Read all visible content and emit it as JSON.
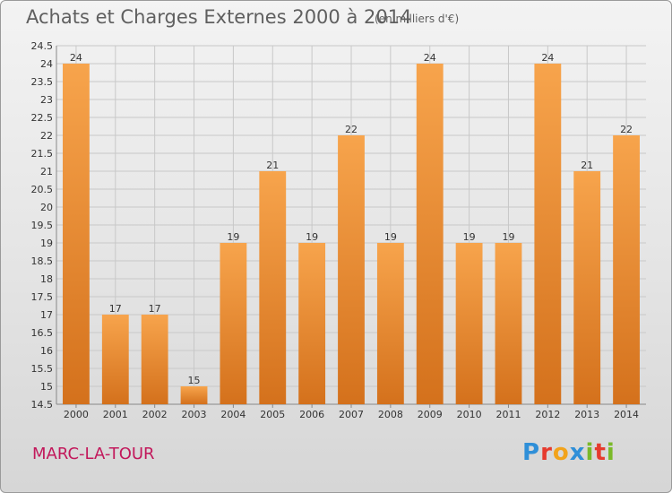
{
  "header": {
    "title": "Achats et Charges Externes 2000 à 2014",
    "subtitle": "(en milliers d'€)"
  },
  "footer": {
    "city": "MARC-LA-TOUR",
    "logo_text": "Proxiti"
  },
  "colors": {
    "bar_light": "#f7a44c",
    "bar_dark": "#d4711c",
    "grid": "#c8c8c8",
    "city_text": "#c2185b"
  },
  "chart_data": {
    "type": "bar",
    "title": "Achats et Charges Externes 2000 à 2014",
    "subtitle": "(en milliers d'€)",
    "categories": [
      "2000",
      "2001",
      "2002",
      "2003",
      "2004",
      "2005",
      "2006",
      "2007",
      "2008",
      "2009",
      "2010",
      "2011",
      "2012",
      "2013",
      "2014"
    ],
    "values": [
      24,
      17,
      17,
      15,
      19,
      21,
      19,
      22,
      19,
      24,
      19,
      19,
      24,
      21,
      22
    ],
    "ylim": [
      14.5,
      24.5
    ],
    "yticks": [
      14.5,
      15,
      15.5,
      16,
      16.5,
      17,
      17.5,
      18,
      18.5,
      19,
      19.5,
      20,
      20.5,
      21,
      21.5,
      22,
      22.5,
      23,
      23.5,
      24,
      24.5
    ],
    "xlabel": "",
    "ylabel": "",
    "grid": true
  }
}
